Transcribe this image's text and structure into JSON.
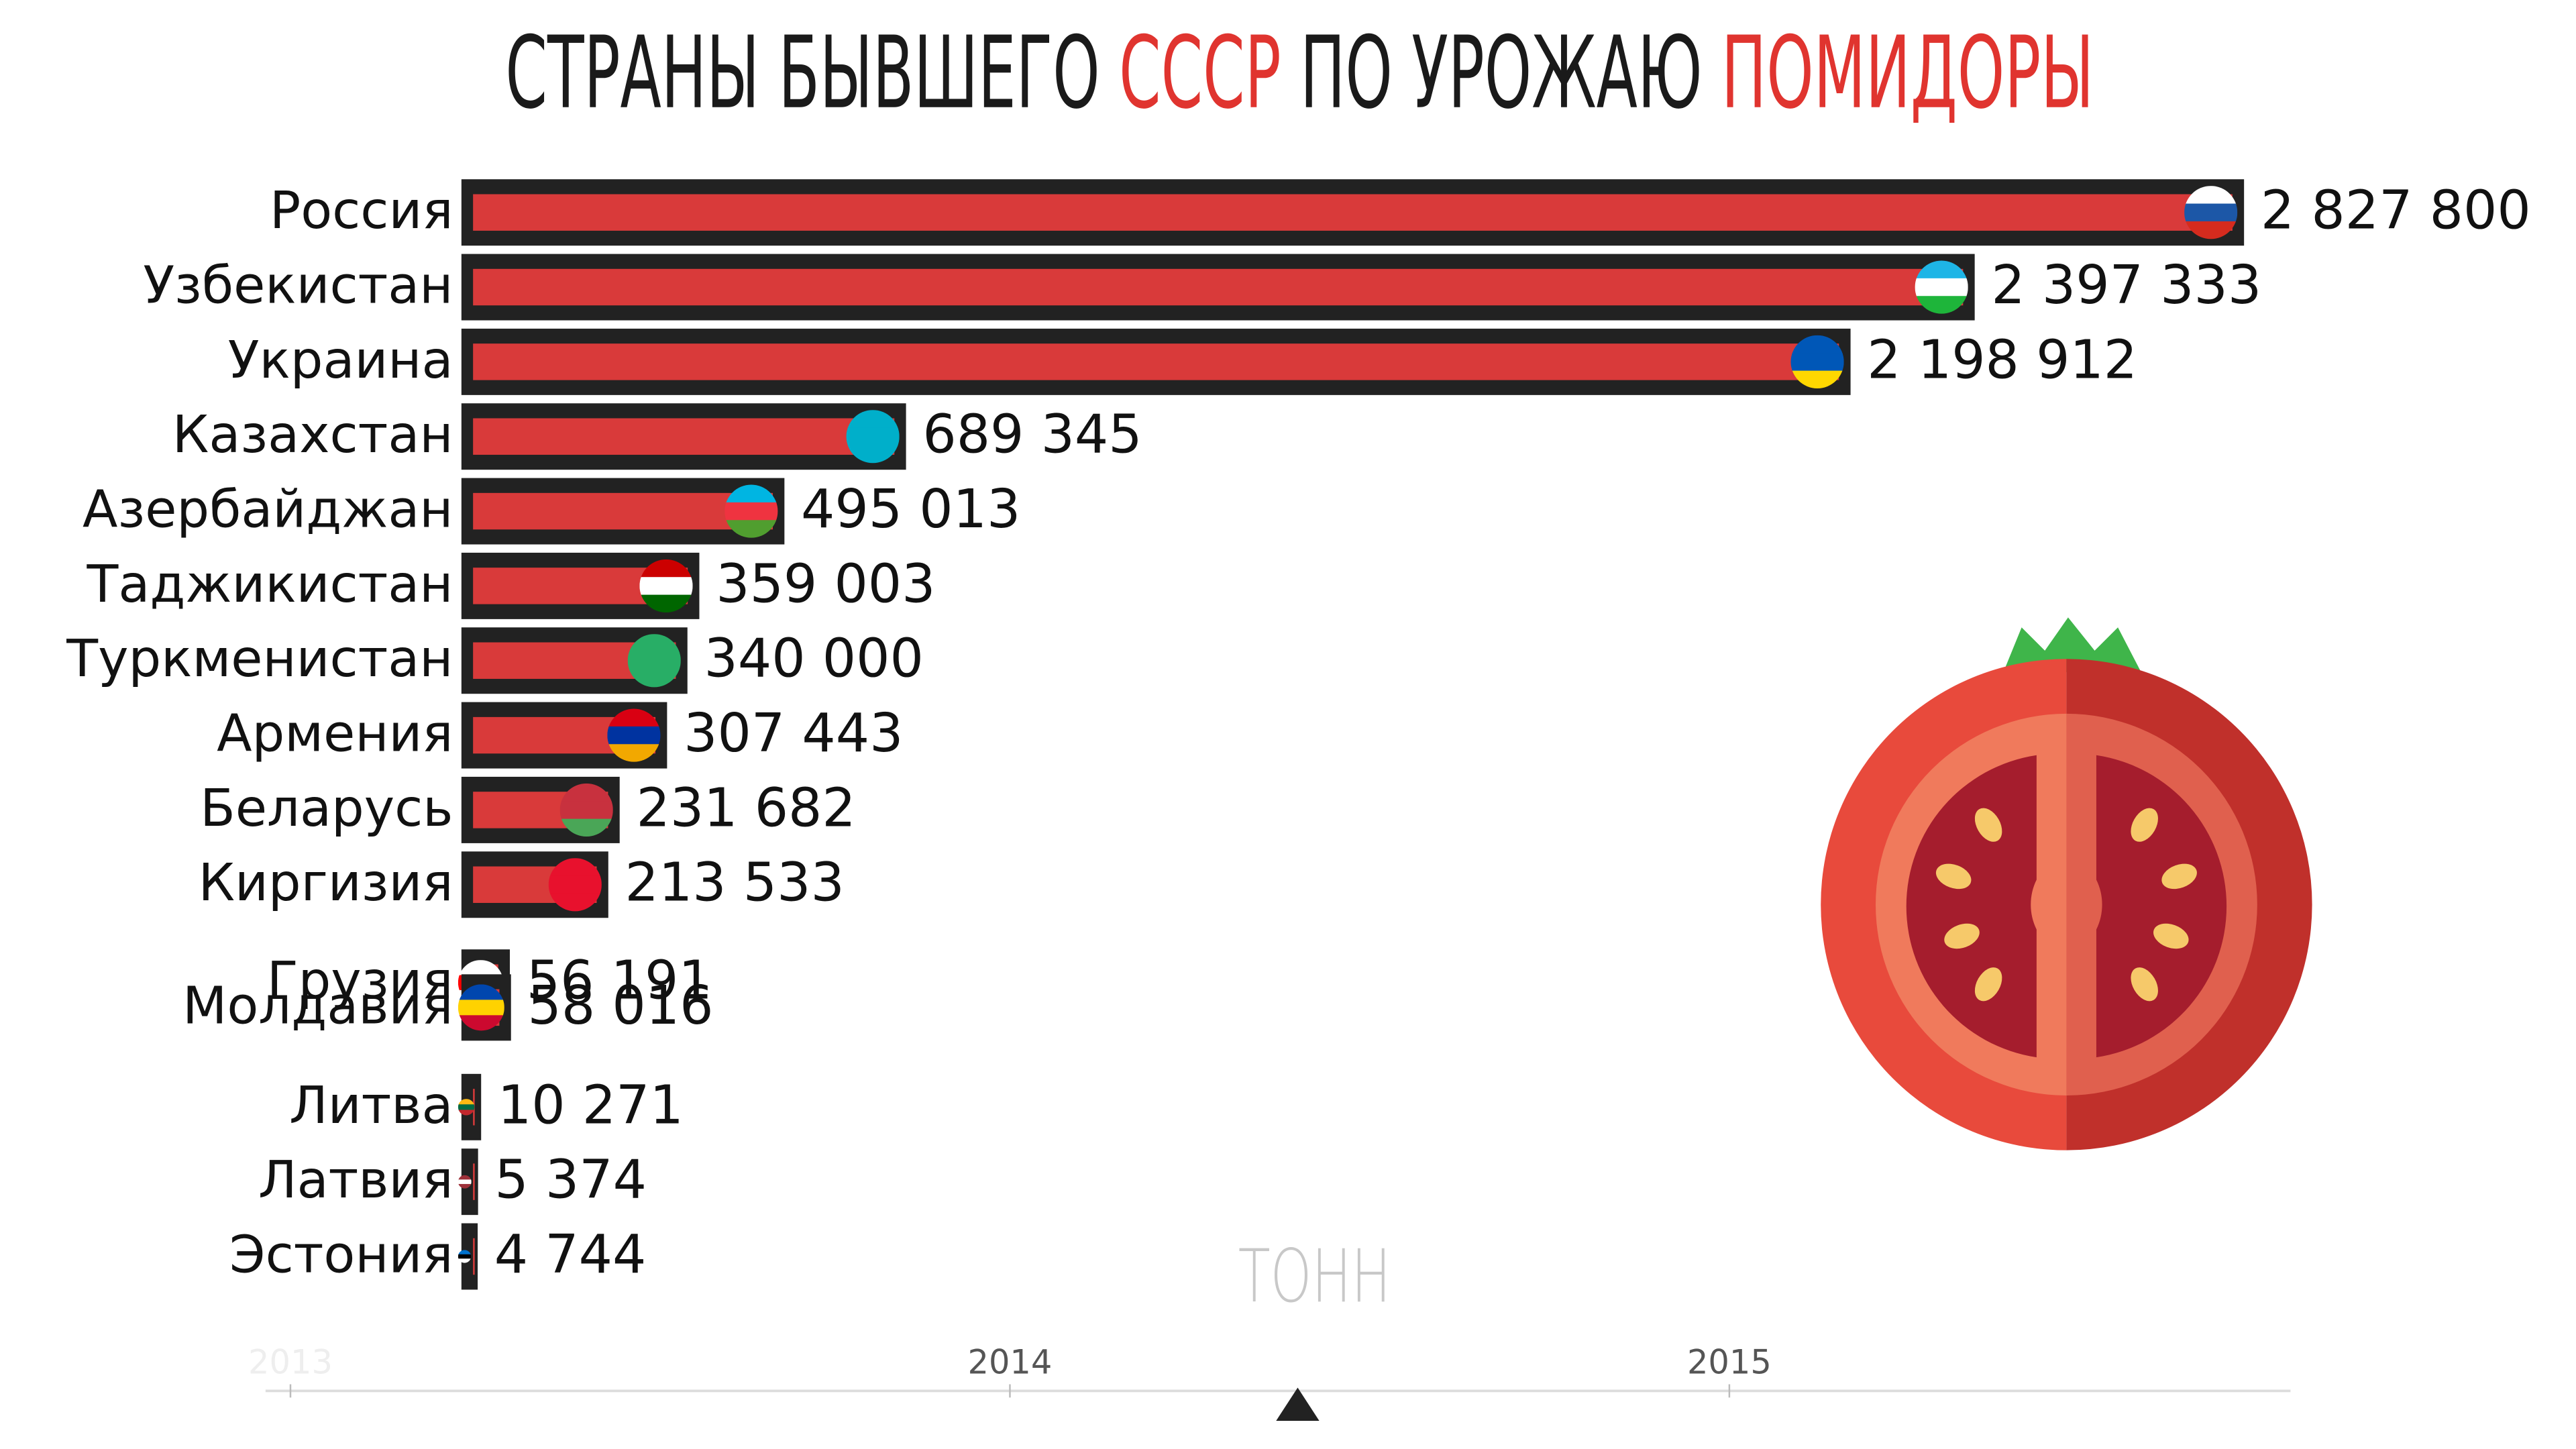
{
  "chart_data": {
    "type": "bar",
    "orientation": "horizontal",
    "title_parts": [
      {
        "text": "СТРАНЫ БЫВШЕГО",
        "color": "#1a1a1a"
      },
      {
        "text": "СССР",
        "color": "#e0342f"
      },
      {
        "text": "ПО УРОЖАЮ",
        "color": "#1a1a1a"
      },
      {
        "text": "ПОМИДОРЫ",
        "color": "#e0342f"
      }
    ],
    "unit": "ТОНН",
    "categories": [
      "Россия",
      "Узбекистан",
      "Украина",
      "Казахстан",
      "Азербайджан",
      "Таджикистан",
      "Туркменистан",
      "Армения",
      "Беларусь",
      "Киргизия",
      "Грузия",
      "Молдавия",
      "Литва",
      "Латвия",
      "Эстония"
    ],
    "values": [
      2827800,
      2397333,
      2198912,
      689345,
      495013,
      359003,
      340000,
      307443,
      231682,
      213533,
      56191,
      58016,
      10271,
      5374,
      4744
    ],
    "value_labels": [
      "2 827 800",
      "2 397 333",
      "2 198 912",
      "689 345",
      "495 013",
      "359 003",
      "340 000",
      "307 443",
      "231 682",
      "213 533",
      "56 191",
      "58 016",
      "10 271",
      "5 374",
      "4 744"
    ],
    "color": "#d93a3a",
    "timeline": {
      "xlim": [
        2013,
        2015.78
      ],
      "xticks": [
        2013,
        2014,
        2015
      ],
      "current": 2014.4
    }
  }
}
